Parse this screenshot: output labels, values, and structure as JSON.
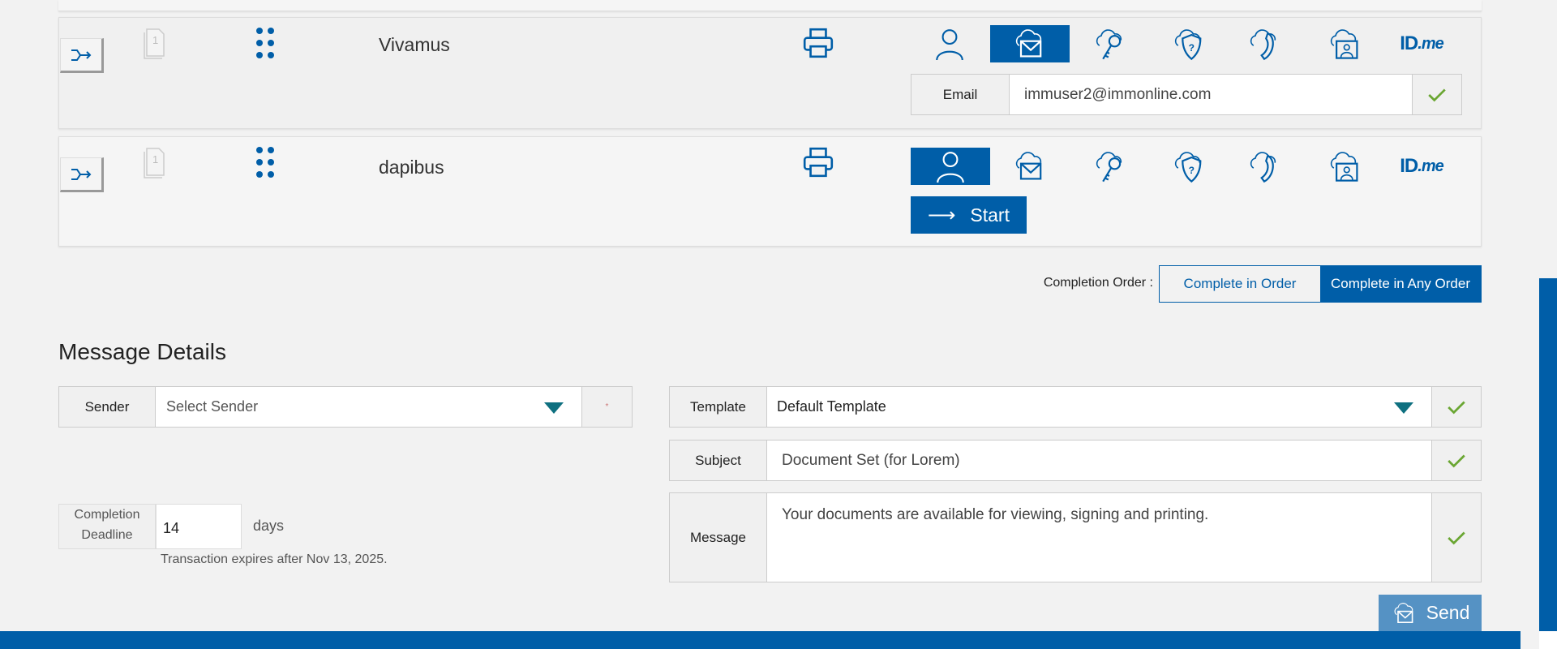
{
  "recipients": [
    {
      "name": "Vivamus",
      "selected_method": "email",
      "email_label": "Email",
      "email_value": "immuser2@immonline.com"
    },
    {
      "name": "dapibus",
      "selected_method": "person",
      "start_label": "Start"
    }
  ],
  "doc_count": "1",
  "idme": {
    "id": "ID",
    "me": ".me"
  },
  "completion_order": {
    "label": "Completion Order :",
    "options": [
      "Complete in Order",
      "Complete in Any Order"
    ],
    "selected": "Complete in Any Order"
  },
  "message_details": {
    "heading": "Message Details",
    "sender_label": "Sender",
    "sender_placeholder": "Select Sender",
    "required_mark": "*",
    "template_label": "Template",
    "template_value": "Default Template",
    "subject_label": "Subject",
    "subject_value": "Document Set (for Lorem)",
    "message_label": "Message",
    "message_value": "Your documents are available for viewing, signing and printing.",
    "deadline_label_1": "Completion",
    "deadline_label_2": "Deadline",
    "deadline_value": "14",
    "deadline_unit": "days",
    "expires_text": "Transaction expires after Nov 13, 2025.",
    "send_label": "Send"
  },
  "colors": {
    "primary": "#005ea8",
    "send": "#5592c4",
    "check": "#6aa632",
    "dropdown_arrow": "#0e7080"
  }
}
